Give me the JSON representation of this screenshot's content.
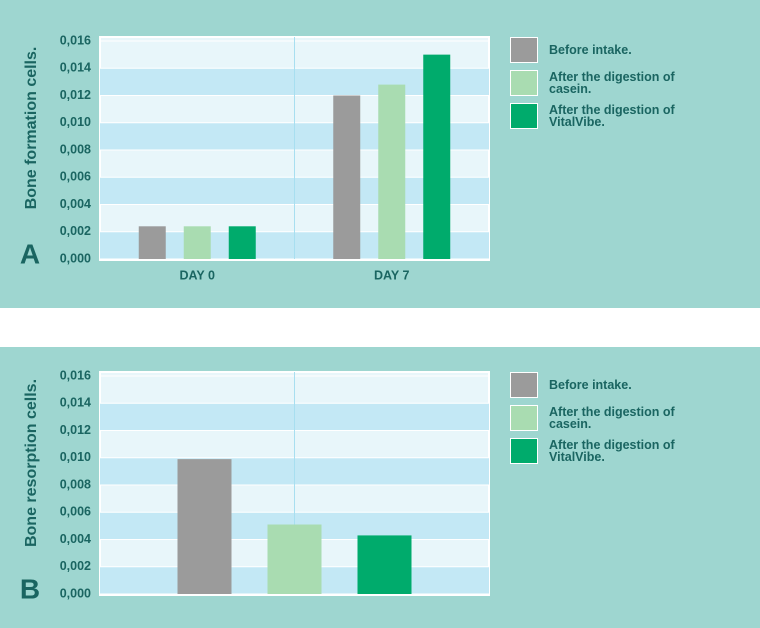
{
  "chart_data": [
    {
      "type": "bar",
      "panel_label": "A",
      "y_label": "Bone formation cells.",
      "categories": [
        "DAY 0",
        "DAY 7"
      ],
      "series": [
        {
          "name": "Before intake.",
          "color": "#9b9b9b",
          "values": [
            0.0024,
            0.012
          ]
        },
        {
          "name": "After the digestion of casein.",
          "color": "#a9dcb1",
          "values": [
            0.0024,
            0.0128
          ]
        },
        {
          "name": "After the digestion of VitalVibe.",
          "color": "#00ab6c",
          "values": [
            0.0024,
            0.015
          ]
        }
      ],
      "ylim": [
        0,
        0.016
      ],
      "yticks": [
        {
          "value": 0,
          "label": "0,000"
        },
        {
          "value": 0.002,
          "label": "0,002"
        },
        {
          "value": 0.004,
          "label": "0,004"
        },
        {
          "value": 0.006,
          "label": "0,006"
        },
        {
          "value": 0.008,
          "label": "0,008"
        },
        {
          "value": 0.01,
          "label": "0,010"
        },
        {
          "value": 0.012,
          "label": "0,012"
        },
        {
          "value": 0.014,
          "label": "0,014"
        },
        {
          "value": 0.016,
          "label": "0,016"
        }
      ]
    },
    {
      "type": "bar",
      "panel_label": "B",
      "y_label": "Bone resorption cells.",
      "categories": [
        null
      ],
      "series": [
        {
          "name": "Before intake.",
          "color": "#9b9b9b",
          "values": [
            0.0099
          ]
        },
        {
          "name": "After the digestion of casein.",
          "color": "#a9dcb1",
          "values": [
            0.0051
          ]
        },
        {
          "name": "After the digestion of VitalVibe.",
          "color": "#00ab6c",
          "values": [
            0.0043
          ]
        }
      ],
      "ylim": [
        0,
        0.016
      ],
      "yticks": [
        {
          "value": 0,
          "label": "0,000"
        },
        {
          "value": 0.002,
          "label": "0,002"
        },
        {
          "value": 0.004,
          "label": "0,004"
        },
        {
          "value": 0.006,
          "label": "0,006"
        },
        {
          "value": 0.008,
          "label": "0,008"
        },
        {
          "value": 0.01,
          "label": "0,010"
        },
        {
          "value": 0.012,
          "label": "0,012"
        },
        {
          "value": 0.014,
          "label": "0,014"
        },
        {
          "value": 0.016,
          "label": "0,016"
        }
      ]
    }
  ]
}
